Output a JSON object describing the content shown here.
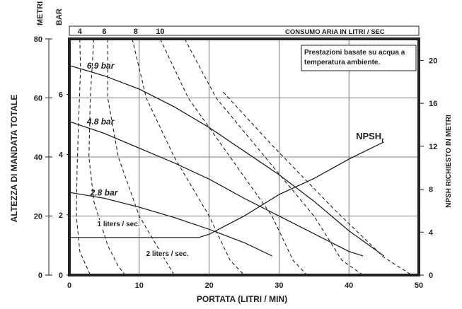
{
  "chart_data": {
    "type": "line",
    "xlabel": "PORTATA (LITRI / MIN)",
    "ylabel": "ALTEZZA DI MANDATA TOTALE",
    "y_unit_meters": "METRI",
    "y_unit_bar": "BAR",
    "y2label": "NPSH RICHIESTO IN METRI",
    "top_axis_label": "CONSUMO ARIA IN LITRI / SEC",
    "note_lines": [
      "Prestazioni basate su acqua a",
      "temperatura ambiente."
    ],
    "xlim": [
      0,
      50
    ],
    "ylim": [
      0,
      80
    ],
    "y2lim": [
      0,
      22
    ],
    "x_ticks": [
      0,
      10,
      20,
      30,
      40,
      50
    ],
    "y_ticks_m": [
      0,
      20,
      40,
      60,
      80
    ],
    "y_ticks_bar": [
      0,
      2,
      4,
      6
    ],
    "y2_ticks": [
      0,
      4,
      8,
      12,
      16,
      20
    ],
    "grid": true,
    "series": [
      {
        "name": "6.9 bar",
        "style": "solid",
        "points": [
          [
            0,
            71
          ],
          [
            5,
            67.5
          ],
          [
            10,
            63
          ],
          [
            15,
            57
          ],
          [
            20,
            50
          ],
          [
            25,
            42
          ],
          [
            30,
            34
          ],
          [
            35,
            25
          ],
          [
            40,
            15
          ],
          [
            45,
            6.5
          ]
        ]
      },
      {
        "name": "4.8 bar",
        "style": "solid",
        "points": [
          [
            0,
            52
          ],
          [
            5,
            48
          ],
          [
            10,
            43
          ],
          [
            15,
            38
          ],
          [
            20,
            32.5
          ],
          [
            25,
            26
          ],
          [
            30,
            20
          ],
          [
            35,
            14
          ],
          [
            40,
            8
          ],
          [
            42,
            6.5
          ]
        ]
      },
      {
        "name": "2.8 bar",
        "style": "solid",
        "points": [
          [
            0,
            28
          ],
          [
            5,
            26
          ],
          [
            10,
            23
          ],
          [
            15,
            19.5
          ],
          [
            20,
            15.5
          ],
          [
            25,
            11
          ],
          [
            29,
            6.5
          ]
        ]
      },
      {
        "name": "NPSHr",
        "style": "solid",
        "points": [
          [
            0,
            3.5
          ],
          [
            18.5,
            3.5
          ],
          [
            20,
            3.8
          ],
          [
            25,
            5.5
          ],
          [
            30,
            7.5
          ],
          [
            35,
            9
          ],
          [
            40,
            10.8
          ],
          [
            45,
            12.4
          ]
        ]
      },
      {
        "name": "1 liters / sec.",
        "style": "dashed",
        "points": [
          [
            1.5,
            80
          ],
          [
            1.6,
            70
          ],
          [
            1.3,
            50
          ],
          [
            1.1,
            35
          ],
          [
            1.0,
            20
          ],
          [
            1.5,
            8
          ],
          [
            3,
            0
          ]
        ]
      },
      {
        "name": "2 liters / sec.",
        "style": "dashed",
        "points": [
          [
            3.5,
            80
          ],
          [
            3,
            60
          ],
          [
            2.8,
            40
          ],
          [
            3.5,
            25
          ],
          [
            5.5,
            10
          ],
          [
            7,
            3
          ],
          [
            8,
            0
          ]
        ]
      },
      {
        "name": "4",
        "style": "dashed",
        "points": [
          [
            5.5,
            80
          ],
          [
            5.5,
            60
          ],
          [
            7,
            40
          ],
          [
            10,
            20
          ],
          [
            13,
            8
          ],
          [
            15,
            0
          ]
        ]
      },
      {
        "name": "6",
        "style": "dashed",
        "points": [
          [
            9,
            80
          ],
          [
            11,
            60
          ],
          [
            15,
            40
          ],
          [
            20,
            20
          ],
          [
            23,
            5
          ],
          [
            25,
            0
          ]
        ]
      },
      {
        "name": "8",
        "style": "dashed",
        "points": [
          [
            13,
            80
          ],
          [
            17,
            60
          ],
          [
            23,
            40
          ],
          [
            29,
            20
          ],
          [
            32,
            5
          ],
          [
            34,
            0
          ]
        ]
      },
      {
        "name": "10",
        "style": "dashed",
        "points": [
          [
            16.5,
            80
          ],
          [
            21,
            60
          ],
          [
            28,
            40
          ],
          [
            35,
            20
          ],
          [
            39,
            5
          ],
          [
            42,
            0
          ]
        ]
      },
      {
        "name": "",
        "style": "dashed",
        "points": [
          [
            22,
            62
          ],
          [
            29,
            44
          ],
          [
            38,
            22
          ],
          [
            45,
            6
          ],
          [
            49,
            0
          ]
        ]
      }
    ],
    "curve_labels": [
      {
        "text": "6.9 bar",
        "x": 2.5,
        "y": 70
      },
      {
        "text": "4.8 bar",
        "x": 2.5,
        "y": 51
      },
      {
        "text": "2.8 bar",
        "x": 3,
        "y": 27
      },
      {
        "text": "1 liters / sec.",
        "x": 4,
        "y": 16.5
      },
      {
        "text": "2 liters / sec.",
        "x": 11,
        "y": 6.5
      }
    ],
    "npsh_label": {
      "text": "NPSH",
      "sub": "r",
      "x": 41,
      "y": 46
    },
    "top_axis_ticks": [
      {
        "label": "4",
        "x": 1.5
      },
      {
        "label": "6",
        "x": 5
      },
      {
        "label": "8",
        "x": 9.5
      },
      {
        "label": "10",
        "x": 13
      }
    ]
  }
}
